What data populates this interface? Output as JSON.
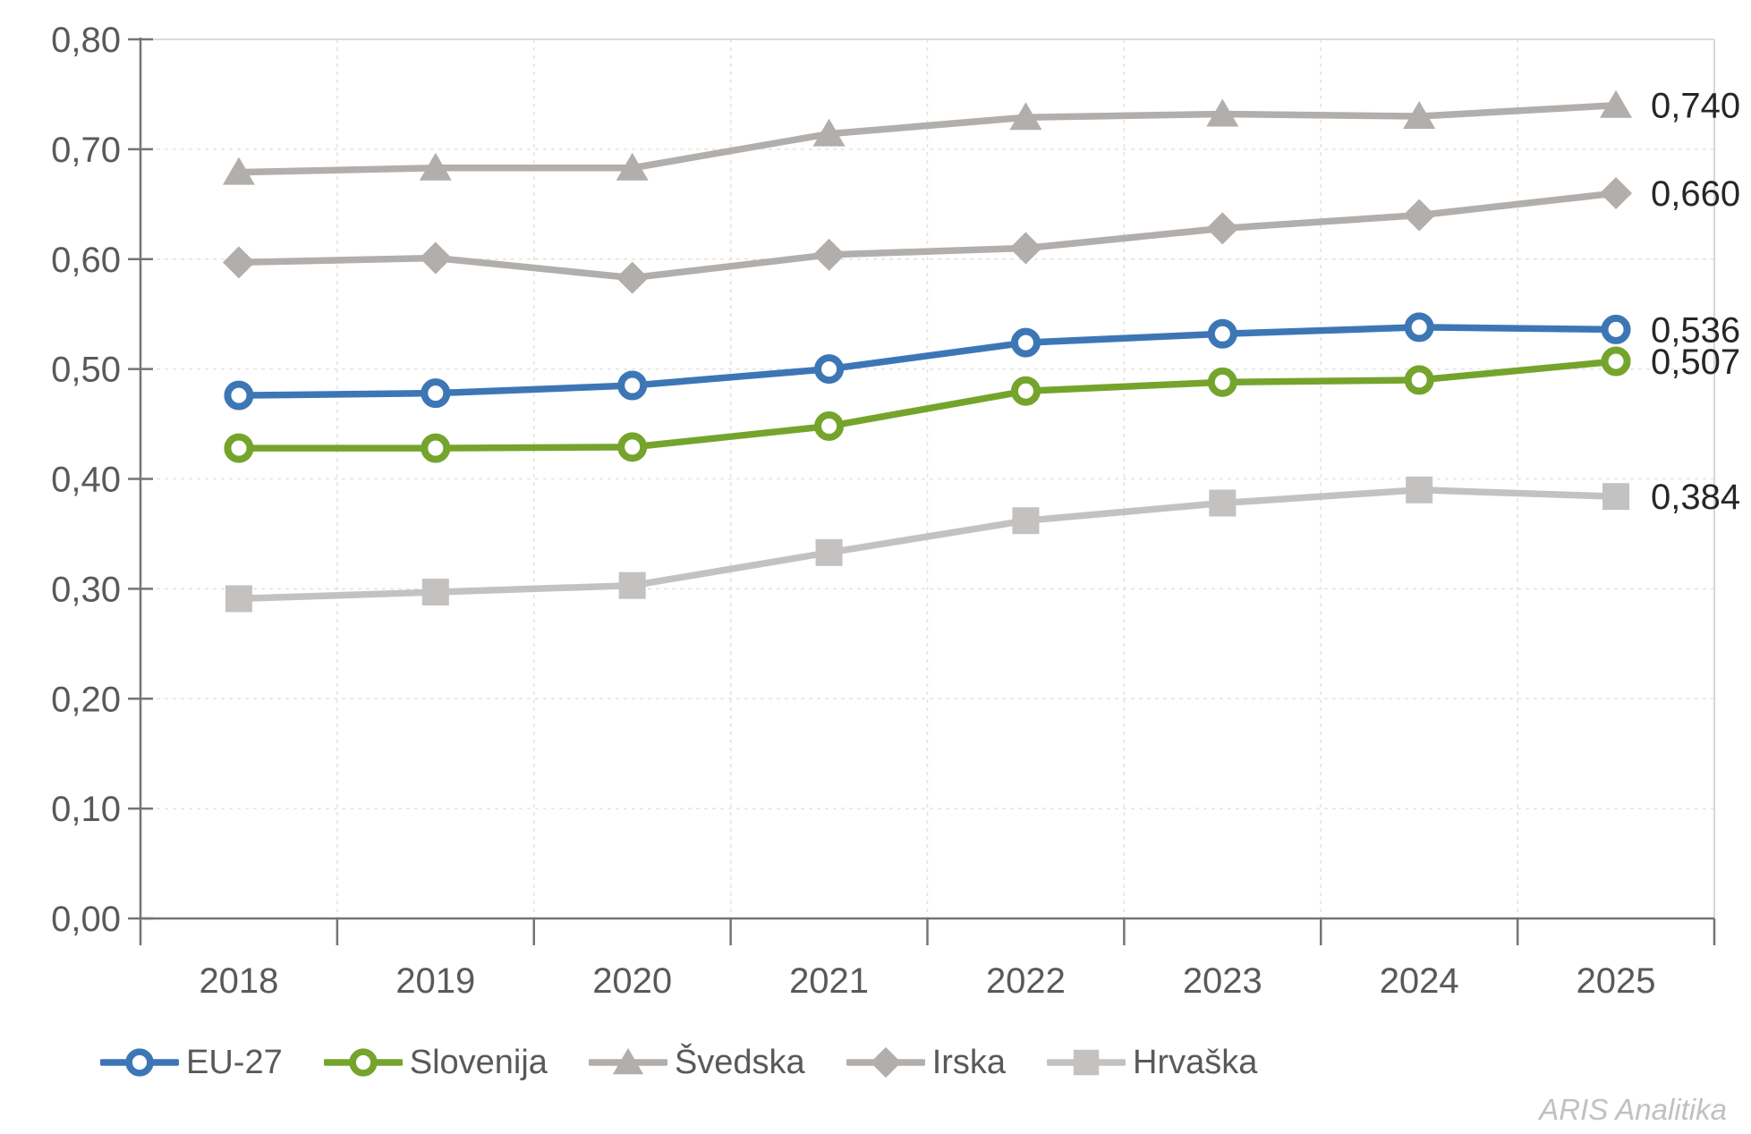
{
  "chart_data": {
    "type": "line",
    "title": "",
    "x": [
      "2018",
      "2019",
      "2020",
      "2021",
      "2022",
      "2023",
      "2024",
      "2025"
    ],
    "series": [
      {
        "key": "eu-27",
        "name": "EU-27",
        "color": "#3D76B5",
        "marker": "circle-open",
        "values": [
          0.476,
          0.478,
          0.485,
          0.5,
          0.524,
          0.532,
          0.538,
          0.536
        ],
        "end_label": "0,536"
      },
      {
        "key": "slovenija",
        "name": "Slovenija",
        "color": "#75A42D",
        "marker": "circle-open",
        "values": [
          0.428,
          0.428,
          0.429,
          0.448,
          0.48,
          0.488,
          0.49,
          0.507
        ],
        "end_label": "0,507"
      },
      {
        "key": "svedska",
        "name": "Švedska",
        "color": "#B1AEAC",
        "marker": "triangle",
        "values": [
          0.679,
          0.683,
          0.683,
          0.714,
          0.729,
          0.732,
          0.73,
          0.74
        ],
        "end_label": "0,740"
      },
      {
        "key": "irska",
        "name": "Irska",
        "color": "#B1AEAC",
        "marker": "diamond",
        "values": [
          0.597,
          0.601,
          0.583,
          0.604,
          0.61,
          0.628,
          0.64,
          0.66
        ],
        "end_label": "0,660"
      },
      {
        "key": "hrvaska",
        "name": "Hrvaška",
        "color": "#C4C2C0",
        "marker": "square",
        "values": [
          0.291,
          0.297,
          0.303,
          0.333,
          0.362,
          0.378,
          0.39,
          0.384
        ],
        "end_label": "0,384"
      }
    ],
    "draw_order": [
      2,
      3,
      4,
      0,
      1
    ],
    "ylim": [
      0,
      0.8
    ],
    "yticks": [
      {
        "v": 0.0,
        "label": "0,00"
      },
      {
        "v": 0.1,
        "label": "0,10"
      },
      {
        "v": 0.2,
        "label": "0,20"
      },
      {
        "v": 0.3,
        "label": "0,30"
      },
      {
        "v": 0.4,
        "label": "0,40"
      },
      {
        "v": 0.5,
        "label": "0,50"
      },
      {
        "v": 0.6,
        "label": "0,60"
      },
      {
        "v": 0.7,
        "label": "0,70"
      },
      {
        "v": 0.8,
        "label": "0,80"
      }
    ],
    "grid": true,
    "legend_position": "bottom",
    "decimal_separator": ","
  },
  "colors": {
    "axis_line": "#747474",
    "grid_dashed": "#E3E3E1",
    "top_border": "#DBDBD9",
    "right_border": "#D9D7D5",
    "tick_text": "#595959",
    "end_label_text": "#262626"
  },
  "watermark": {
    "text": "ARIS Analitika"
  }
}
